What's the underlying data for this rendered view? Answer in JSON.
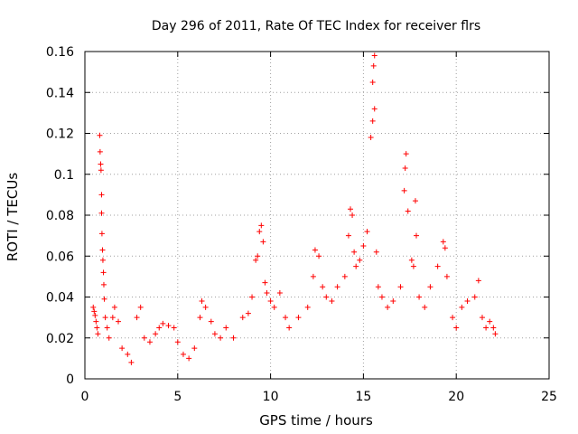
{
  "chart_data": {
    "type": "scatter",
    "title": "Day 296 of 2011, Rate Of TEC Index for receiver flrs",
    "xlabel": "GPS time / hours",
    "ylabel": "ROTI / TECUs",
    "xlim": [
      0,
      25
    ],
    "ylim": [
      0,
      0.16
    ],
    "xticks": [
      0,
      5,
      10,
      15,
      20,
      25
    ],
    "yticks": [
      0,
      0.02,
      0.04,
      0.06,
      0.08,
      0.1,
      0.12,
      0.14,
      0.16
    ],
    "xtick_labels": [
      "0",
      "5",
      "10",
      "15",
      "20",
      "25"
    ],
    "ytick_labels": [
      "0",
      "0.02",
      "0.04",
      "0.06",
      "0.08",
      "0.1",
      "0.12",
      "0.14",
      "0.16"
    ],
    "grid": true,
    "marker": "+",
    "color": "#ff0000",
    "series": [
      {
        "name": "ROTI",
        "points": [
          [
            0.45,
            0.035
          ],
          [
            0.5,
            0.033
          ],
          [
            0.55,
            0.031
          ],
          [
            0.6,
            0.028
          ],
          [
            0.65,
            0.025
          ],
          [
            0.7,
            0.022
          ],
          [
            0.8,
            0.119
          ],
          [
            0.82,
            0.111
          ],
          [
            0.85,
            0.105
          ],
          [
            0.87,
            0.102
          ],
          [
            0.9,
            0.09
          ],
          [
            0.9,
            0.081
          ],
          [
            0.92,
            0.071
          ],
          [
            0.95,
            0.063
          ],
          [
            0.97,
            0.058
          ],
          [
            1.0,
            0.052
          ],
          [
            1.02,
            0.046
          ],
          [
            1.05,
            0.039
          ],
          [
            1.1,
            0.03
          ],
          [
            1.2,
            0.025
          ],
          [
            1.3,
            0.02
          ],
          [
            1.5,
            0.03
          ],
          [
            1.6,
            0.035
          ],
          [
            1.8,
            0.028
          ],
          [
            2.0,
            0.015
          ],
          [
            2.3,
            0.012
          ],
          [
            2.5,
            0.008
          ],
          [
            2.8,
            0.03
          ],
          [
            3.0,
            0.035
          ],
          [
            3.2,
            0.02
          ],
          [
            3.5,
            0.018
          ],
          [
            3.8,
            0.022
          ],
          [
            4.0,
            0.025
          ],
          [
            4.2,
            0.027
          ],
          [
            4.5,
            0.026
          ],
          [
            4.8,
            0.025
          ],
          [
            5.0,
            0.018
          ],
          [
            5.3,
            0.012
          ],
          [
            5.6,
            0.01
          ],
          [
            5.9,
            0.015
          ],
          [
            6.2,
            0.03
          ],
          [
            6.3,
            0.038
          ],
          [
            6.5,
            0.035
          ],
          [
            6.8,
            0.028
          ],
          [
            7.0,
            0.022
          ],
          [
            7.3,
            0.02
          ],
          [
            7.6,
            0.025
          ],
          [
            8.0,
            0.02
          ],
          [
            8.5,
            0.03
          ],
          [
            8.8,
            0.032
          ],
          [
            9.0,
            0.04
          ],
          [
            9.2,
            0.058
          ],
          [
            9.3,
            0.06
          ],
          [
            9.4,
            0.072
          ],
          [
            9.5,
            0.075
          ],
          [
            9.6,
            0.067
          ],
          [
            9.7,
            0.047
          ],
          [
            9.8,
            0.042
          ],
          [
            10.0,
            0.038
          ],
          [
            10.2,
            0.035
          ],
          [
            10.5,
            0.042
          ],
          [
            10.8,
            0.03
          ],
          [
            11.0,
            0.025
          ],
          [
            11.5,
            0.03
          ],
          [
            12.0,
            0.035
          ],
          [
            12.3,
            0.05
          ],
          [
            12.4,
            0.063
          ],
          [
            12.6,
            0.06
          ],
          [
            12.8,
            0.045
          ],
          [
            13.0,
            0.04
          ],
          [
            13.3,
            0.038
          ],
          [
            13.6,
            0.045
          ],
          [
            14.0,
            0.05
          ],
          [
            14.2,
            0.07
          ],
          [
            14.3,
            0.083
          ],
          [
            14.4,
            0.08
          ],
          [
            14.5,
            0.062
          ],
          [
            14.6,
            0.055
          ],
          [
            14.8,
            0.058
          ],
          [
            15.0,
            0.065
          ],
          [
            15.2,
            0.072
          ],
          [
            15.4,
            0.118
          ],
          [
            15.5,
            0.126
          ],
          [
            15.5,
            0.145
          ],
          [
            15.55,
            0.153
          ],
          [
            15.6,
            0.158
          ],
          [
            15.6,
            0.132
          ],
          [
            15.7,
            0.062
          ],
          [
            15.8,
            0.045
          ],
          [
            16.0,
            0.04
          ],
          [
            16.3,
            0.035
          ],
          [
            16.6,
            0.038
          ],
          [
            17.0,
            0.045
          ],
          [
            17.2,
            0.092
          ],
          [
            17.25,
            0.103
          ],
          [
            17.3,
            0.11
          ],
          [
            17.4,
            0.082
          ],
          [
            17.6,
            0.058
          ],
          [
            17.7,
            0.055
          ],
          [
            17.8,
            0.087
          ],
          [
            17.85,
            0.07
          ],
          [
            18.0,
            0.04
          ],
          [
            18.3,
            0.035
          ],
          [
            18.6,
            0.045
          ],
          [
            19.0,
            0.055
          ],
          [
            19.3,
            0.067
          ],
          [
            19.4,
            0.064
          ],
          [
            19.5,
            0.05
          ],
          [
            19.8,
            0.03
          ],
          [
            20.0,
            0.025
          ],
          [
            20.3,
            0.035
          ],
          [
            20.6,
            0.038
          ],
          [
            21.0,
            0.04
          ],
          [
            21.2,
            0.048
          ],
          [
            21.4,
            0.03
          ],
          [
            21.6,
            0.025
          ],
          [
            21.8,
            0.028
          ],
          [
            22.0,
            0.025
          ],
          [
            22.1,
            0.022
          ]
        ]
      }
    ]
  }
}
